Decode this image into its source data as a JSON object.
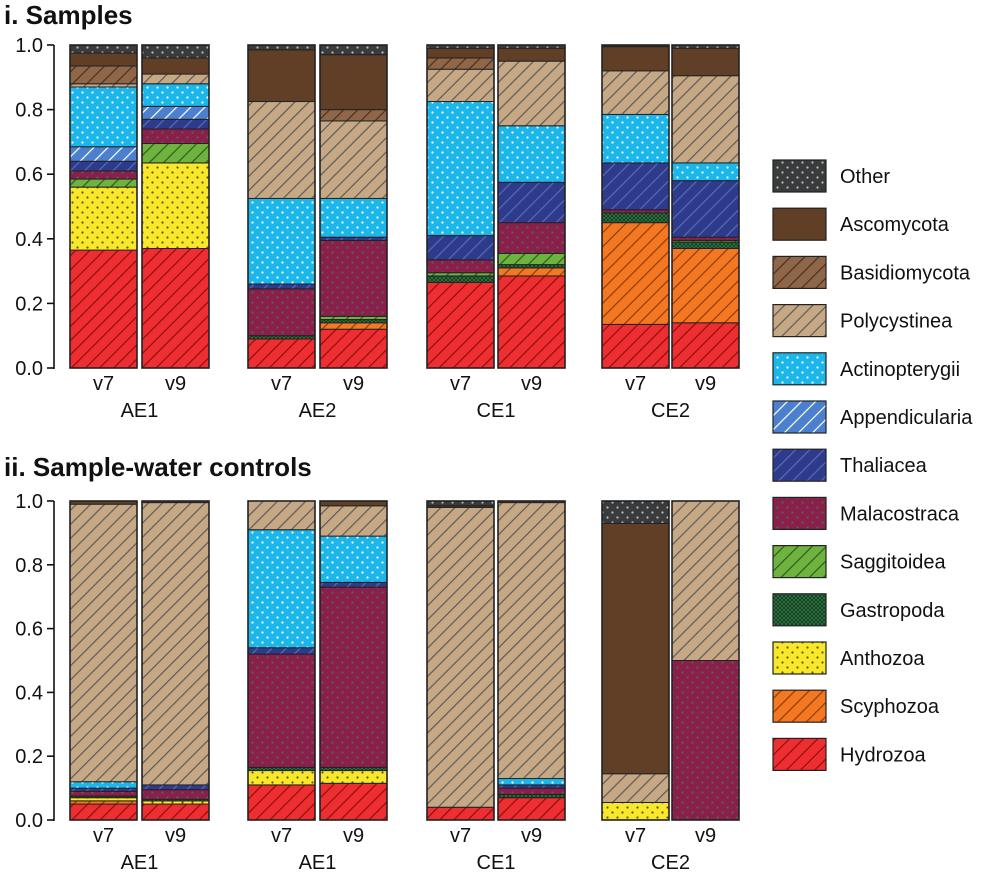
{
  "taxa": [
    "Other",
    "Ascomycota",
    "Basidiomycota",
    "Polycystinea",
    "Actinopterygii",
    "Appendicularia",
    "Thaliacea",
    "Malacostraca",
    "Saggitoidea",
    "Gastropoda",
    "Anthozoa",
    "Scyphozoa",
    "Hydrozoa"
  ],
  "taxon_styles": {
    "Other": {
      "color": "#3a3b3d",
      "pattern": "dots",
      "pattern_color": "#bfbfbf"
    },
    "Ascomycota": {
      "color": "#603f26",
      "pattern": "none"
    },
    "Basidiomycota": {
      "color": "#8f6647",
      "pattern": "diagonal",
      "pattern_color": "#4a3020"
    },
    "Polycystinea": {
      "color": "#c7a884",
      "pattern": "diagonal",
      "pattern_color": "#5a5a5a"
    },
    "Actinopterygii": {
      "color": "#1bb7ea",
      "pattern": "dots",
      "pattern_color": "#ffffff"
    },
    "Appendicularia": {
      "color": "#4b7fd0",
      "pattern": "diagonal",
      "pattern_color": "#ffffff"
    },
    "Thaliacea": {
      "color": "#2e3a8c",
      "pattern": "diagonal",
      "pattern_color": "#5b6bb0"
    },
    "Malacostraca": {
      "color": "#8b1f4b",
      "pattern": "dots",
      "pattern_color": "#4d6a54"
    },
    "Saggitoidea": {
      "color": "#6fb33f",
      "pattern": "diagonal",
      "pattern_color": "#2f5a22"
    },
    "Gastropoda": {
      "color": "#2f7b44",
      "pattern": "cross",
      "pattern_color": "#173a20"
    },
    "Anthozoa": {
      "color": "#f9e72c",
      "pattern": "dots",
      "pattern_color": "#5a5a00"
    },
    "Scyphozoa": {
      "color": "#f47721",
      "pattern": "diagonal",
      "pattern_color": "#8a3d10"
    },
    "Hydrozoa": {
      "color": "#ee2e31",
      "pattern": "diagonal",
      "pattern_color": "#8a1010"
    }
  },
  "panels": [
    {
      "title": "i. Samples"
    },
    {
      "title": "ii. Sample-water controls"
    }
  ],
  "chart_data": [
    {
      "type": "bar",
      "stacked": true,
      "title": "i. Samples",
      "xlabel": "",
      "ylabel": "",
      "ylim": [
        0,
        1.0
      ],
      "yticks": [
        "0.0",
        "0.2",
        "0.4",
        "0.6",
        "0.8",
        "1.0"
      ],
      "groups": [
        "AE1",
        "AE2",
        "CE1",
        "CE2"
      ],
      "bar_labels": [
        "v7",
        "v9"
      ],
      "bars": [
        {
          "group": "AE1",
          "label": "v7",
          "values": {
            "Hydrozoa": 0.365,
            "Anthozoa": 0.195,
            "Saggitoidea": 0.025,
            "Malacostraca": 0.025,
            "Thaliacea": 0.03,
            "Appendicularia": 0.045,
            "Actinopterygii": 0.185,
            "Polycystinea": 0.01,
            "Basidiomycota": 0.055,
            "Ascomycota": 0.04,
            "Other": 0.025
          }
        },
        {
          "group": "AE1",
          "label": "v9",
          "values": {
            "Hydrozoa": 0.37,
            "Anthozoa": 0.265,
            "Saggitoidea": 0.06,
            "Malacostraca": 0.045,
            "Thaliacea": 0.03,
            "Appendicularia": 0.04,
            "Actinopterygii": 0.07,
            "Polycystinea": 0.03,
            "Ascomycota": 0.05,
            "Other": 0.04
          }
        },
        {
          "group": "AE2",
          "label": "v7",
          "values": {
            "Hydrozoa": 0.09,
            "Gastropoda": 0.01,
            "Malacostraca": 0.145,
            "Thaliacea": 0.015,
            "Actinopterygii": 0.265,
            "Polycystinea": 0.3,
            "Ascomycota": 0.16,
            "Other": 0.015
          }
        },
        {
          "group": "AE2",
          "label": "v9",
          "values": {
            "Hydrozoa": 0.12,
            "Scyphozoa": 0.02,
            "Saggitoidea": 0.01,
            "Gastropoda": 0.01,
            "Malacostraca": 0.235,
            "Thaliacea": 0.01,
            "Actinopterygii": 0.12,
            "Polycystinea": 0.24,
            "Basidiomycota": 0.035,
            "Ascomycota": 0.17,
            "Other": 0.03
          }
        },
        {
          "group": "CE1",
          "label": "v7",
          "values": {
            "Hydrozoa": 0.265,
            "Gastropoda": 0.02,
            "Saggitoidea": 0.01,
            "Malacostraca": 0.04,
            "Thaliacea": 0.075,
            "Actinopterygii": 0.415,
            "Polycystinea": 0.1,
            "Basidiomycota": 0.035,
            "Ascomycota": 0.03,
            "Other": 0.01
          }
        },
        {
          "group": "CE1",
          "label": "v9",
          "values": {
            "Hydrozoa": 0.285,
            "Scyphozoa": 0.025,
            "Saggitoidea": 0.035,
            "Gastropoda": 0.01,
            "Malacostraca": 0.095,
            "Thaliacea": 0.125,
            "Actinopterygii": 0.175,
            "Polycystinea": 0.2,
            "Ascomycota": 0.04,
            "Other": 0.01
          }
        },
        {
          "group": "CE2",
          "label": "v7",
          "values": {
            "Hydrozoa": 0.135,
            "Scyphozoa": 0.315,
            "Gastropoda": 0.03,
            "Malacostraca": 0.01,
            "Thaliacea": 0.145,
            "Actinopterygii": 0.15,
            "Polycystinea": 0.135,
            "Ascomycota": 0.075,
            "Other": 0.005
          }
        },
        {
          "group": "CE2",
          "label": "v9",
          "values": {
            "Hydrozoa": 0.14,
            "Scyphozoa": 0.23,
            "Gastropoda": 0.02,
            "Saggitoidea": 0.005,
            "Malacostraca": 0.01,
            "Thaliacea": 0.175,
            "Actinopterygii": 0.055,
            "Polycystinea": 0.27,
            "Ascomycota": 0.085,
            "Other": 0.01
          }
        }
      ]
    },
    {
      "type": "bar",
      "stacked": true,
      "title": "ii. Sample-water controls",
      "xlabel": "",
      "ylabel": "",
      "ylim": [
        0,
        1.0
      ],
      "yticks": [
        "0.0",
        "0.2",
        "0.4",
        "0.6",
        "0.8",
        "1.0"
      ],
      "groups": [
        "AE1",
        "AE1",
        "CE1",
        "CE2"
      ],
      "bar_labels": [
        "v7",
        "v9"
      ],
      "bars": [
        {
          "group": "AE1",
          "label": "v7",
          "values": {
            "Hydrozoa": 0.05,
            "Scyphozoa": 0.01,
            "Anthozoa": 0.01,
            "Gastropoda": 0.005,
            "Malacostraca": 0.015,
            "Thaliacea": 0.01,
            "Actinopterygii": 0.02,
            "Polycystinea": 0.87,
            "Ascomycota": 0.01
          }
        },
        {
          "group": "AE1",
          "label": "v9",
          "values": {
            "Hydrozoa": 0.05,
            "Anthozoa": 0.01,
            "Gastropoda": 0.005,
            "Malacostraca": 0.03,
            "Thaliacea": 0.015,
            "Polycystinea": 0.885,
            "Ascomycota": 0.005
          }
        },
        {
          "group": "AE1",
          "label": "v7",
          "values": {
            "Hydrozoa": 0.11,
            "Anthozoa": 0.045,
            "Gastropoda": 0.01,
            "Malacostraca": 0.355,
            "Thaliacea": 0.02,
            "Actinopterygii": 0.37,
            "Polycystinea": 0.09
          }
        },
        {
          "group": "AE1",
          "label": "v9",
          "values": {
            "Hydrozoa": 0.115,
            "Anthozoa": 0.04,
            "Gastropoda": 0.01,
            "Malacostraca": 0.565,
            "Thaliacea": 0.015,
            "Actinopterygii": 0.145,
            "Polycystinea": 0.095,
            "Ascomycota": 0.015
          }
        },
        {
          "group": "CE1",
          "label": "v7",
          "values": {
            "Hydrozoa": 0.04,
            "Other": 0.015,
            "Ascomycota": 0.005,
            "Polycystinea": 0.94
          }
        },
        {
          "group": "CE1",
          "label": "v9",
          "values": {
            "Hydrozoa": 0.07,
            "Malacostraca": 0.02,
            "Gastropoda": 0.01,
            "Thaliacea": 0.01,
            "Actinopterygii": 0.02,
            "Polycystinea": 0.865,
            "Ascomycota": 0.005
          }
        },
        {
          "group": "CE2",
          "label": "v7",
          "values": {
            "Anthozoa": 0.055,
            "Polycystinea": 0.09,
            "Ascomycota": 0.785,
            "Other": 0.07
          }
        },
        {
          "group": "CE2",
          "label": "v9",
          "values": {
            "Malacostraca": 0.5,
            "Polycystinea": 0.5
          }
        }
      ]
    }
  ]
}
